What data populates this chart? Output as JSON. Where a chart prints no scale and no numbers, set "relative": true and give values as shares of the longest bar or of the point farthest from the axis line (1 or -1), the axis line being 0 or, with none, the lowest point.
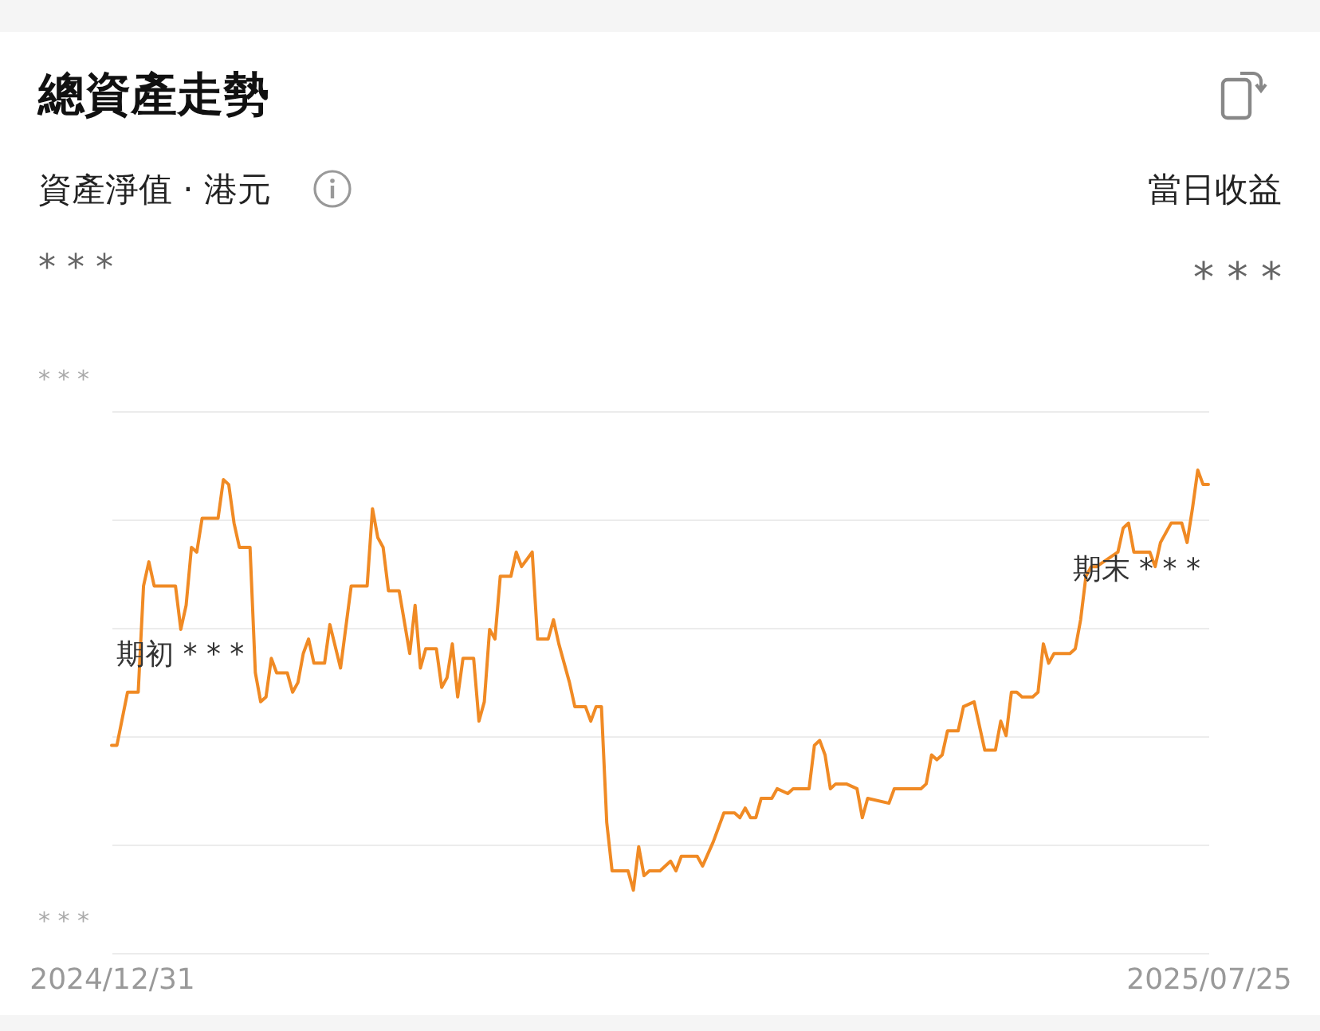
{
  "chart_data": {
    "type": "line",
    "title": "總資產走勢",
    "subtitle": "資產淨值 · 港元",
    "relative": true,
    "grid": true,
    "annotations": [
      "當日收益",
      "* * *",
      "* * *",
      "* * *",
      "* * *",
      {
        "text": "期初 * * *",
        "x": "2024-12-31",
        "y": 0.43
      },
      {
        "text": "期末 * * *",
        "x": "2025-07-25",
        "y": 0.97
      }
    ],
    "xlim": [
      "2024-12-31",
      "2025-07-25"
    ],
    "xticks": [
      {
        "value": "2024-12-31",
        "label": "2024/12/31"
      },
      {
        "value": "2025-07-25",
        "label": "2025/07/25"
      }
    ],
    "x": [
      "2024-12-31",
      "2025-01-01",
      "2025-01-03",
      "2025-01-05",
      "2025-01-06",
      "2025-01-07",
      "2025-01-08",
      "2025-01-12",
      "2025-01-13",
      "2025-01-14",
      "2025-01-15",
      "2025-01-16",
      "2025-01-17",
      "2025-01-20",
      "2025-01-21",
      "2025-01-22",
      "2025-01-23",
      "2025-01-24",
      "2025-01-26",
      "2025-01-27",
      "2025-01-28",
      "2025-01-29",
      "2025-01-30",
      "2025-01-31",
      "2025-02-02",
      "2025-02-03",
      "2025-02-04",
      "2025-02-05",
      "2025-02-06",
      "2025-02-07",
      "2025-02-09",
      "2025-02-10",
      "2025-02-12",
      "2025-02-14",
      "2025-02-17",
      "2025-02-18",
      "2025-02-19",
      "2025-02-20",
      "2025-02-21",
      "2025-02-23",
      "2025-02-25",
      "2025-02-26",
      "2025-02-27",
      "2025-02-28",
      "2025-03-02",
      "2025-03-03",
      "2025-03-04",
      "2025-03-05",
      "2025-03-06",
      "2025-03-07",
      "2025-03-09",
      "2025-03-10",
      "2025-03-11",
      "2025-03-12",
      "2025-03-13",
      "2025-03-14",
      "2025-03-16",
      "2025-03-17",
      "2025-03-18",
      "2025-03-20",
      "2025-03-21",
      "2025-03-23",
      "2025-03-24",
      "2025-03-25",
      "2025-03-26",
      "2025-03-27",
      "2025-03-28",
      "2025-03-30",
      "2025-03-31",
      "2025-04-01",
      "2025-04-02",
      "2025-04-03",
      "2025-04-04",
      "2025-04-06",
      "2025-04-07",
      "2025-04-08",
      "2025-04-09",
      "2025-04-10",
      "2025-04-11",
      "2025-04-13",
      "2025-04-15",
      "2025-04-16",
      "2025-04-17",
      "2025-04-20",
      "2025-04-21",
      "2025-04-23",
      "2025-04-25",
      "2025-04-27",
      "2025-04-28",
      "2025-04-29",
      "2025-04-30",
      "2025-05-01",
      "2025-05-02",
      "2025-05-04",
      "2025-05-05",
      "2025-05-07",
      "2025-05-08",
      "2025-05-09",
      "2025-05-11",
      "2025-05-12",
      "2025-05-13",
      "2025-05-14",
      "2025-05-15",
      "2025-05-16",
      "2025-05-18",
      "2025-05-20",
      "2025-05-21",
      "2025-05-22",
      "2025-05-26",
      "2025-05-27",
      "2025-05-28",
      "2025-05-30",
      "2025-06-01",
      "2025-06-02",
      "2025-06-03",
      "2025-06-04",
      "2025-06-05",
      "2025-06-06",
      "2025-06-08",
      "2025-06-09",
      "2025-06-11",
      "2025-06-13",
      "2025-06-15",
      "2025-06-16",
      "2025-06-17",
      "2025-06-18",
      "2025-06-19",
      "2025-06-20",
      "2025-06-22",
      "2025-06-23",
      "2025-06-24",
      "2025-06-25",
      "2025-06-26",
      "2025-06-29",
      "2025-06-30",
      "2025-07-01",
      "2025-07-02",
      "2025-07-03",
      "2025-07-04",
      "2025-07-08",
      "2025-07-09",
      "2025-07-10",
      "2025-07-11",
      "2025-07-14",
      "2025-07-15",
      "2025-07-16",
      "2025-07-18",
      "2025-07-20",
      "2025-07-21",
      "2025-07-22",
      "2025-07-23",
      "2025-07-24",
      "2025-07-25"
    ],
    "series": [
      {
        "color": "#f08a24",
        "values": [
          0.43,
          0.43,
          0.54,
          0.54,
          0.76,
          0.81,
          0.76,
          0.76,
          0.67,
          0.72,
          0.84,
          0.83,
          0.9,
          0.9,
          0.98,
          0.97,
          0.89,
          0.84,
          0.84,
          0.58,
          0.52,
          0.53,
          0.61,
          0.58,
          0.58,
          0.54,
          0.56,
          0.62,
          0.65,
          0.6,
          0.6,
          0.68,
          0.59,
          0.76,
          0.76,
          0.92,
          0.86,
          0.84,
          0.75,
          0.75,
          0.62,
          0.72,
          0.59,
          0.63,
          0.63,
          0.55,
          0.57,
          0.64,
          0.53,
          0.61,
          0.61,
          0.48,
          0.52,
          0.67,
          0.65,
          0.78,
          0.78,
          0.83,
          0.8,
          0.83,
          0.65,
          0.65,
          0.69,
          0.64,
          0.6,
          0.56,
          0.51,
          0.51,
          0.48,
          0.51,
          0.51,
          0.27,
          0.17,
          0.17,
          0.17,
          0.13,
          0.22,
          0.16,
          0.17,
          0.17,
          0.19,
          0.17,
          0.2,
          0.2,
          0.18,
          0.23,
          0.29,
          0.29,
          0.28,
          0.3,
          0.28,
          0.28,
          0.32,
          0.32,
          0.34,
          0.33,
          0.34,
          0.34,
          0.34,
          0.43,
          0.44,
          0.41,
          0.34,
          0.35,
          0.35,
          0.34,
          0.28,
          0.32,
          0.31,
          0.34,
          0.34,
          0.34,
          0.34,
          0.35,
          0.41,
          0.4,
          0.41,
          0.46,
          0.46,
          0.51,
          0.52,
          0.42,
          0.42,
          0.48,
          0.45,
          0.54,
          0.54,
          0.53,
          0.53,
          0.54,
          0.64,
          0.6,
          0.62,
          0.62,
          0.63,
          0.69,
          0.78,
          0.8,
          0.8,
          0.83,
          0.88,
          0.89,
          0.83,
          0.83,
          0.8,
          0.85,
          0.89,
          0.89,
          0.85,
          0.92,
          1,
          0.97,
          0.97
        ]
      }
    ]
  }
}
